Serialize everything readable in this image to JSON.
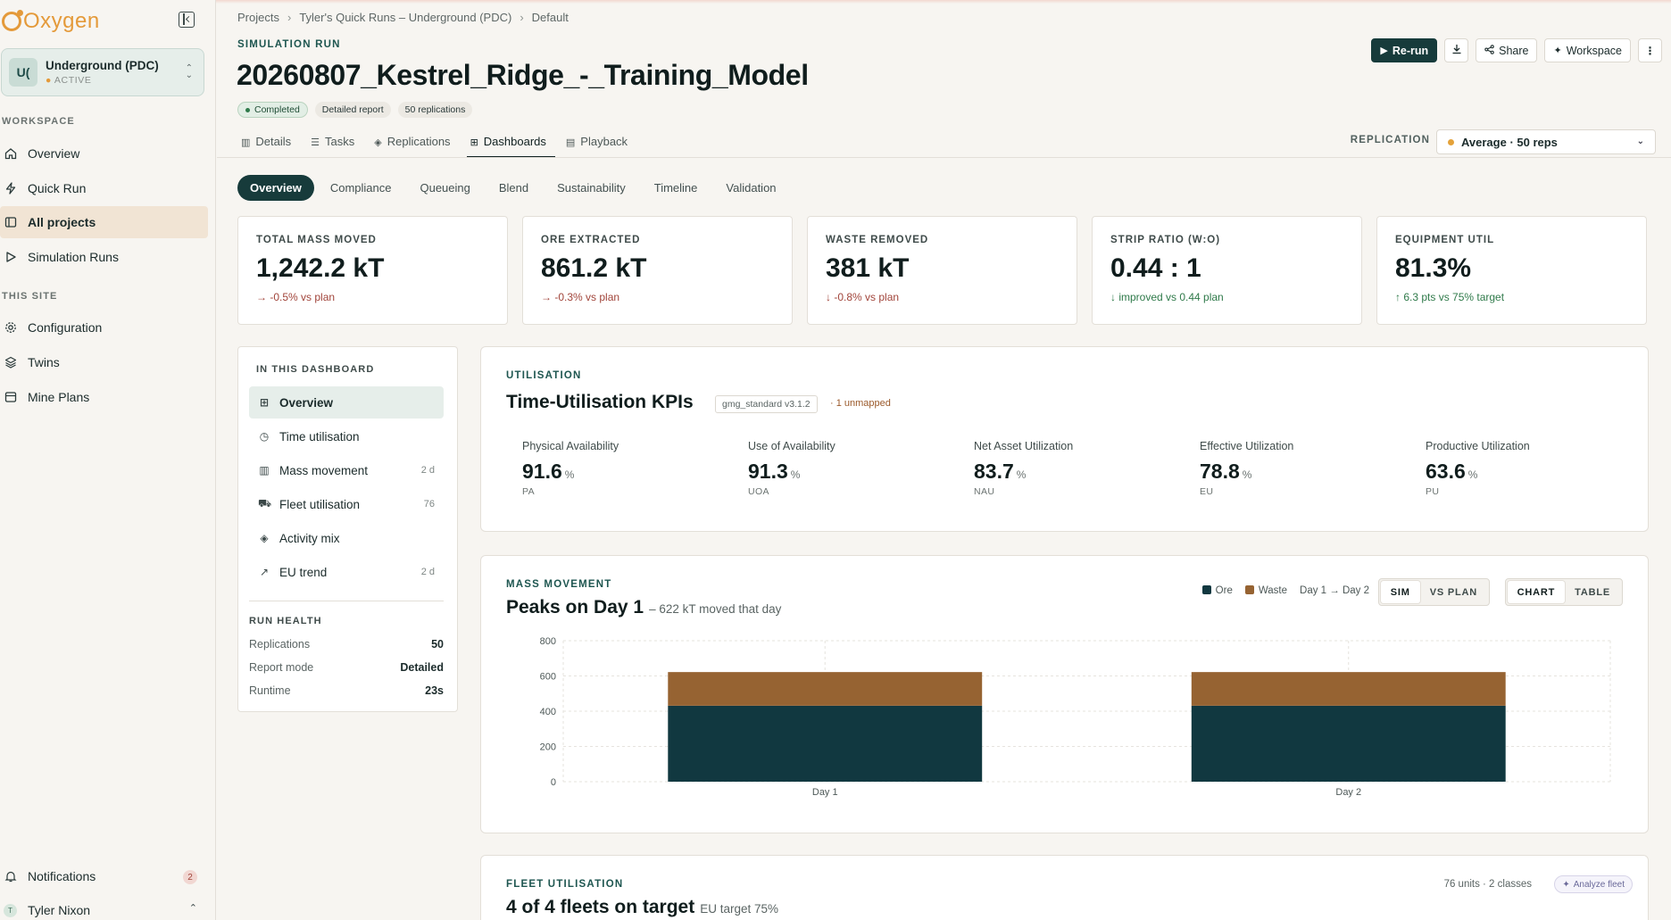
{
  "app": {
    "name": "Oxygen"
  },
  "sidebar": {
    "workspace": {
      "initials": "U(",
      "name": "Underground (PDC)",
      "status": "ACTIVE"
    },
    "sections": {
      "workspace": "WORKSPACE",
      "site": "THIS SITE"
    },
    "items": [
      {
        "label": "Overview",
        "icon": "home-icon"
      },
      {
        "label": "Quick Run",
        "icon": "bolt-icon"
      },
      {
        "label": "All projects",
        "icon": "folder-icon"
      },
      {
        "label": "Simulation Runs",
        "icon": "play-icon"
      },
      {
        "label": "Configuration",
        "icon": "gear-icon"
      },
      {
        "label": "Twins",
        "icon": "layers-icon"
      },
      {
        "label": "Mine Plans",
        "icon": "map-icon"
      }
    ],
    "notifications": {
      "label": "Notifications",
      "count": "2"
    },
    "user": {
      "name": "Tyler Nixon",
      "initial": "T"
    }
  },
  "breadcrumb": [
    "Projects",
    "Tyler's Quick Runs – Underground (PDC)",
    "Default"
  ],
  "run": {
    "eyebrow": "SIMULATION RUN",
    "title": "20260807_Kestrel_Ridge_-_Training_Model",
    "chips": {
      "status": "Completed",
      "report": "Detailed report",
      "reps": "50 replications"
    }
  },
  "actions": {
    "rerun": "Re-run",
    "share": "Share",
    "workspace": "Workspace"
  },
  "tabs": [
    {
      "label": "Details",
      "icon": "bar-chart-icon"
    },
    {
      "label": "Tasks",
      "icon": "checklist-icon"
    },
    {
      "label": "Replications",
      "icon": "layers-icon"
    },
    {
      "label": "Dashboards",
      "icon": "grid-icon"
    },
    {
      "label": "Playback",
      "icon": "film-icon"
    }
  ],
  "replication": {
    "label": "REPLICATION",
    "value": "Average · 50 reps"
  },
  "subtabs": [
    "Overview",
    "Compliance",
    "Queueing",
    "Blend",
    "Sustainability",
    "Timeline",
    "Validation"
  ],
  "kpis": [
    {
      "label": "TOTAL MASS MOVED",
      "value": "1,242.2 kT",
      "delta": "→ -0.5% vs plan",
      "tone": "neg"
    },
    {
      "label": "ORE EXTRACTED",
      "value": "861.2 kT",
      "delta": "→ -0.3% vs plan",
      "tone": "neg"
    },
    {
      "label": "WASTE REMOVED",
      "value": "381 kT",
      "delta": "↓ -0.8% vs plan",
      "tone": "neg"
    },
    {
      "label": "STRIP RATIO (W:O)",
      "value": "0.44 : 1",
      "delta": "↓ improved vs 0.44 plan",
      "tone": "pos"
    },
    {
      "label": "EQUIPMENT UTIL",
      "value": "81.3%",
      "delta": "↑ 6.3 pts vs 75% target",
      "tone": "pos"
    }
  ],
  "toc": {
    "title": "IN THIS DASHBOARD",
    "items": [
      {
        "label": "Overview",
        "meta": "",
        "icon": "grid-icon"
      },
      {
        "label": "Time utilisation",
        "meta": "",
        "icon": "clock-icon"
      },
      {
        "label": "Mass movement",
        "meta": "2 d",
        "icon": "bar-chart-icon"
      },
      {
        "label": "Fleet utilisation",
        "meta": "76",
        "icon": "truck-icon"
      },
      {
        "label": "Activity mix",
        "meta": "",
        "icon": "layers-icon"
      },
      {
        "label": "EU trend",
        "meta": "2 d",
        "icon": "trend-icon"
      }
    ],
    "health_title": "RUN HEALTH",
    "health": [
      {
        "label": "Replications",
        "value": "50"
      },
      {
        "label": "Report mode",
        "value": "Detailed"
      },
      {
        "label": "Runtime",
        "value": "23s"
      }
    ]
  },
  "utilisation": {
    "eyebrow": "UTILISATION",
    "title": "Time-Utilisation KPIs",
    "tag": "gmg_standard v3.1.2",
    "unmapped": "· 1 unmapped",
    "metrics": [
      {
        "label": "Physical Availability",
        "value": "91.6",
        "unit": "%",
        "abbr": "PA"
      },
      {
        "label": "Use of Availability",
        "value": "91.3",
        "unit": "%",
        "abbr": "UOA"
      },
      {
        "label": "Net Asset Utilization",
        "value": "83.7",
        "unit": "%",
        "abbr": "NAU"
      },
      {
        "label": "Effective Utilization",
        "value": "78.8",
        "unit": "%",
        "abbr": "EU"
      },
      {
        "label": "Productive Utilization",
        "value": "63.6",
        "unit": "%",
        "abbr": "PU"
      }
    ]
  },
  "mass": {
    "eyebrow": "MASS MOVEMENT",
    "title": "Peaks on Day 1",
    "subtitle": "– 622 kT moved that day",
    "legend": {
      "ore": "Ore",
      "waste": "Waste",
      "range": "Day 1 → Day 2"
    },
    "toggle1": [
      "SIM",
      "VS PLAN"
    ],
    "toggle2": [
      "CHART",
      "TABLE"
    ],
    "colors": {
      "ore": "#113840",
      "waste": "#966332"
    }
  },
  "chart_data": {
    "type": "bar",
    "stacked": true,
    "categories": [
      "Day 1",
      "Day 2"
    ],
    "series": [
      {
        "name": "Ore",
        "values": [
          431,
          431
        ]
      },
      {
        "name": "Waste",
        "values": [
          191,
          191
        ]
      }
    ],
    "ylim": [
      0,
      800
    ],
    "yticks": [
      0,
      200,
      400,
      600,
      800
    ],
    "grid": true,
    "title": "Peaks on Day 1",
    "xlabel": "",
    "ylabel": ""
  },
  "fleet": {
    "eyebrow": "FLEET UTILISATION",
    "title": "4 of 4 fleets on target",
    "subtitle": "EU target 75%",
    "units": "76 units · 2 classes",
    "analyze": "Analyze fleet"
  }
}
